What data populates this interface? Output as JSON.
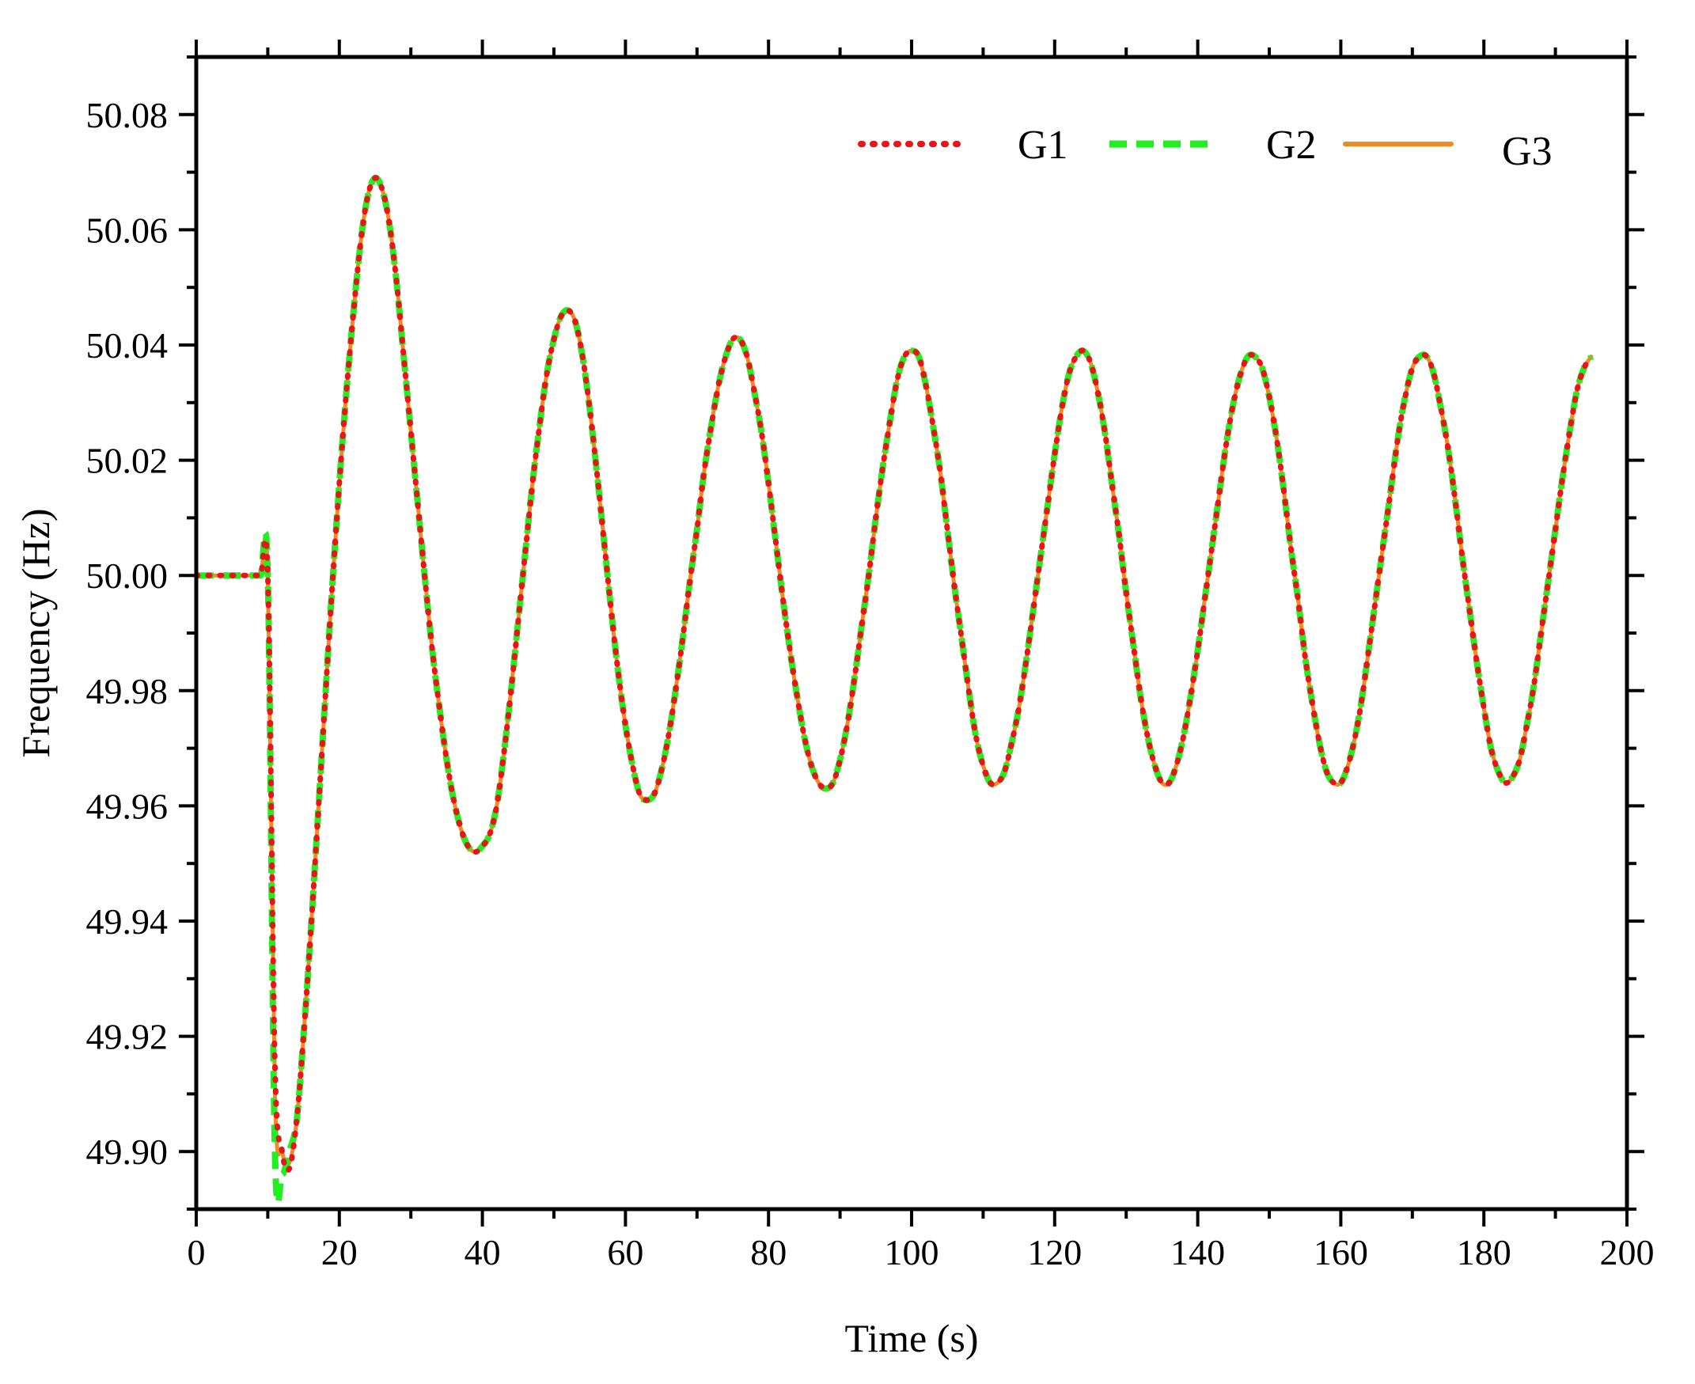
{
  "chart_data": {
    "type": "line",
    "title": "",
    "xlabel": "Time (s)",
    "ylabel": "Frequency (Hz)",
    "xlim": [
      0,
      200
    ],
    "ylim": [
      49.89,
      50.09
    ],
    "xticks": [
      0,
      20,
      40,
      60,
      80,
      100,
      120,
      140,
      160,
      180,
      200
    ],
    "xtick_labels": [
      "0",
      "20",
      "40",
      "60",
      "80",
      "100",
      "120",
      "140",
      "160",
      "180",
      "200"
    ],
    "yticks": [
      49.9,
      49.92,
      49.94,
      49.96,
      49.98,
      50.0,
      50.02,
      50.04,
      50.06,
      50.08
    ],
    "ytick_labels": [
      "49.90",
      "49.92",
      "49.94",
      "49.96",
      "49.98",
      "50.00",
      "50.02",
      "50.04",
      "50.06",
      "50.08"
    ],
    "grid": false,
    "legend_position": "top-right",
    "legend_orientation": "horizontal",
    "x_step": 1,
    "series": [
      {
        "name": "G1",
        "color": "#e8141b",
        "style": "dotted",
        "values": [
          50.0,
          50.0,
          50.0,
          50.0,
          50.0,
          50.0,
          50.0,
          50.0,
          50.0,
          50.0,
          50.0,
          49.915,
          49.9,
          49.897,
          49.905,
          49.92,
          49.938,
          49.958,
          49.978,
          49.998,
          50.016,
          50.032,
          50.046,
          50.058,
          50.066,
          50.069,
          50.067,
          50.061,
          50.051,
          50.038,
          50.025,
          50.012,
          49.999,
          49.987,
          49.977,
          49.968,
          49.961,
          49.956,
          49.953,
          49.952,
          49.953,
          49.955,
          49.96,
          49.969,
          49.98,
          49.992,
          50.004,
          50.016,
          50.026,
          50.035,
          50.041,
          50.045,
          50.046,
          50.044,
          50.038,
          50.029,
          50.018,
          50.006,
          49.994,
          49.983,
          49.974,
          49.967,
          49.962,
          49.961,
          49.962,
          49.966,
          49.972,
          49.98,
          49.989,
          49.999,
          50.008,
          50.018,
          50.026,
          50.033,
          50.038,
          50.041,
          50.041,
          50.038,
          50.032,
          50.025,
          50.016,
          50.006,
          49.996,
          49.987,
          49.979,
          49.972,
          49.967,
          49.964,
          49.963,
          49.964,
          49.968,
          49.974,
          49.982,
          49.991,
          50.0,
          50.01,
          50.019,
          50.027,
          50.034,
          50.038,
          50.039,
          50.038,
          50.033,
          50.026,
          50.018,
          50.008,
          49.998,
          49.989,
          49.98,
          49.972,
          49.967,
          49.964,
          49.964,
          49.966,
          49.971,
          49.977,
          49.985,
          49.994,
          50.003,
          50.012,
          50.021,
          50.029,
          50.035,
          50.038,
          50.039,
          50.037,
          50.032,
          50.025,
          50.016,
          50.007,
          49.997,
          49.988,
          49.979,
          49.972,
          49.967,
          49.964,
          49.964,
          49.967,
          49.972,
          49.979,
          49.987,
          49.996,
          50.005,
          50.014,
          50.023,
          50.03,
          50.035,
          50.038,
          50.038,
          50.036,
          50.031,
          50.024,
          50.015,
          50.005,
          49.996,
          49.986,
          49.978,
          49.971,
          49.966,
          49.964,
          49.964,
          49.967,
          49.972,
          49.979,
          49.988,
          49.997,
          50.006,
          50.015,
          50.024,
          50.031,
          50.036,
          50.038,
          50.038,
          50.035,
          50.029,
          50.022,
          50.013,
          50.003,
          49.994,
          49.985,
          49.977,
          49.97,
          49.966,
          49.964,
          49.965,
          49.968,
          49.974,
          49.981,
          49.99,
          49.999,
          50.008,
          50.017,
          50.025,
          50.032,
          50.036,
          50.038
        ]
      },
      {
        "name": "G2",
        "color": "#22ee22",
        "style": "dashed",
        "values": [
          50.0,
          50.0,
          50.0,
          50.0,
          50.0,
          50.0,
          50.0,
          50.0,
          50.0,
          50.0,
          50.0,
          49.9,
          49.896,
          49.9,
          49.905,
          49.92,
          49.938,
          49.958,
          49.978,
          49.998,
          50.016,
          50.032,
          50.046,
          50.058,
          50.066,
          50.069,
          50.067,
          50.061,
          50.051,
          50.038,
          50.025,
          50.012,
          49.999,
          49.987,
          49.977,
          49.968,
          49.961,
          49.956,
          49.953,
          49.952,
          49.953,
          49.955,
          49.96,
          49.969,
          49.98,
          49.992,
          50.004,
          50.016,
          50.026,
          50.035,
          50.041,
          50.045,
          50.046,
          50.044,
          50.038,
          50.029,
          50.018,
          50.006,
          49.994,
          49.983,
          49.974,
          49.967,
          49.962,
          49.961,
          49.962,
          49.966,
          49.972,
          49.98,
          49.989,
          49.999,
          50.008,
          50.018,
          50.026,
          50.033,
          50.038,
          50.041,
          50.041,
          50.038,
          50.032,
          50.025,
          50.016,
          50.006,
          49.996,
          49.987,
          49.979,
          49.972,
          49.967,
          49.964,
          49.963,
          49.964,
          49.968,
          49.974,
          49.982,
          49.991,
          50.0,
          50.01,
          50.019,
          50.027,
          50.034,
          50.038,
          50.039,
          50.038,
          50.033,
          50.026,
          50.018,
          50.008,
          49.998,
          49.989,
          49.98,
          49.972,
          49.967,
          49.964,
          49.964,
          49.966,
          49.971,
          49.977,
          49.985,
          49.994,
          50.003,
          50.012,
          50.021,
          50.029,
          50.035,
          50.038,
          50.039,
          50.037,
          50.032,
          50.025,
          50.016,
          50.007,
          49.997,
          49.988,
          49.979,
          49.972,
          49.967,
          49.964,
          49.964,
          49.967,
          49.972,
          49.979,
          49.987,
          49.996,
          50.005,
          50.014,
          50.023,
          50.03,
          50.035,
          50.038,
          50.038,
          50.036,
          50.031,
          50.024,
          50.015,
          50.005,
          49.996,
          49.986,
          49.978,
          49.971,
          49.966,
          49.964,
          49.964,
          49.967,
          49.972,
          49.979,
          49.988,
          49.997,
          50.006,
          50.015,
          50.024,
          50.031,
          50.036,
          50.038,
          50.038,
          50.035,
          50.029,
          50.022,
          50.013,
          50.003,
          49.994,
          49.985,
          49.977,
          49.97,
          49.966,
          49.964,
          49.965,
          49.968,
          49.974,
          49.981,
          49.99,
          49.999,
          50.008,
          50.017,
          50.025,
          50.032,
          50.036,
          50.038
        ]
      },
      {
        "name": "G3",
        "color": "#f08a24",
        "style": "solid",
        "values": [
          50.0,
          50.0,
          50.0,
          50.0,
          50.0,
          50.0,
          50.0,
          50.0,
          50.0,
          50.0,
          50.0,
          49.91,
          49.9,
          49.898,
          49.905,
          49.92,
          49.938,
          49.958,
          49.978,
          49.998,
          50.016,
          50.032,
          50.046,
          50.058,
          50.066,
          50.069,
          50.067,
          50.061,
          50.051,
          50.038,
          50.025,
          50.012,
          49.999,
          49.987,
          49.977,
          49.968,
          49.961,
          49.956,
          49.953,
          49.952,
          49.953,
          49.955,
          49.96,
          49.969,
          49.98,
          49.992,
          50.004,
          50.016,
          50.026,
          50.035,
          50.041,
          50.045,
          50.046,
          50.044,
          50.038,
          50.029,
          50.018,
          50.006,
          49.994,
          49.983,
          49.974,
          49.967,
          49.962,
          49.961,
          49.962,
          49.966,
          49.972,
          49.98,
          49.989,
          49.999,
          50.008,
          50.018,
          50.026,
          50.033,
          50.038,
          50.041,
          50.041,
          50.038,
          50.032,
          50.025,
          50.016,
          50.006,
          49.996,
          49.987,
          49.979,
          49.972,
          49.967,
          49.964,
          49.963,
          49.964,
          49.968,
          49.974,
          49.982,
          49.991,
          50.0,
          50.01,
          50.019,
          50.027,
          50.034,
          50.038,
          50.039,
          50.038,
          50.033,
          50.026,
          50.018,
          50.008,
          49.998,
          49.989,
          49.98,
          49.972,
          49.967,
          49.964,
          49.964,
          49.966,
          49.971,
          49.977,
          49.985,
          49.994,
          50.003,
          50.012,
          50.021,
          50.029,
          50.035,
          50.038,
          50.039,
          50.037,
          50.032,
          50.025,
          50.016,
          50.007,
          49.997,
          49.988,
          49.979,
          49.972,
          49.967,
          49.964,
          49.964,
          49.967,
          49.972,
          49.979,
          49.987,
          49.996,
          50.005,
          50.014,
          50.023,
          50.03,
          50.035,
          50.038,
          50.038,
          50.036,
          50.031,
          50.024,
          50.015,
          50.005,
          49.996,
          49.986,
          49.978,
          49.971,
          49.966,
          49.964,
          49.964,
          49.967,
          49.972,
          49.979,
          49.988,
          49.997,
          50.006,
          50.015,
          50.024,
          50.031,
          50.036,
          50.038,
          50.038,
          50.035,
          50.029,
          50.022,
          50.013,
          50.003,
          49.994,
          49.985,
          49.977,
          49.97,
          49.966,
          49.964,
          49.965,
          49.968,
          49.974,
          49.981,
          49.99,
          49.999,
          50.008,
          50.017,
          50.025,
          50.032,
          50.036,
          50.038
        ]
      }
    ]
  }
}
